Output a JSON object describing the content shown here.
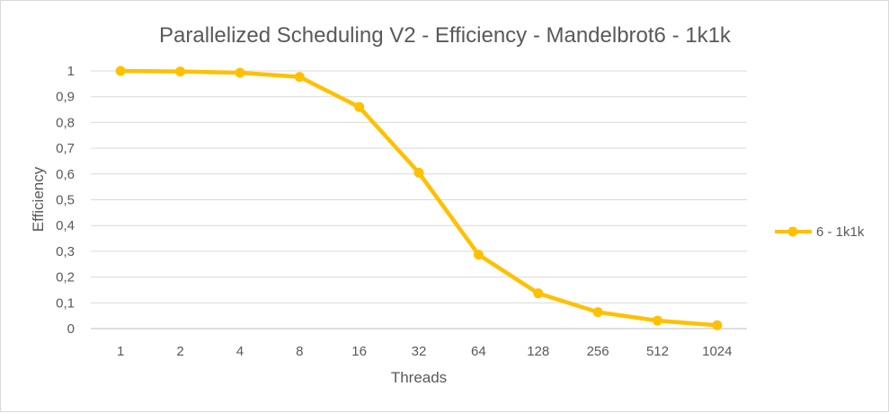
{
  "chart_data": {
    "type": "line",
    "title": "Parallelized Scheduling V2 - Efficiency - Mandelbrot6 - 1k1k",
    "xlabel": "Threads",
    "ylabel": "Efficiency",
    "categories": [
      "1",
      "2",
      "4",
      "8",
      "16",
      "32",
      "64",
      "128",
      "256",
      "512",
      "1024"
    ],
    "y_ticks": [
      "0",
      "0,1",
      "0,2",
      "0,3",
      "0,4",
      "0,5",
      "0,6",
      "0,7",
      "0,8",
      "0,9",
      "1"
    ],
    "ylim": [
      0,
      1
    ],
    "grid": true,
    "legend_position": "right",
    "series": [
      {
        "name": "6 - 1k1k",
        "color": "#FFC000",
        "values": [
          1.0,
          0.998,
          0.993,
          0.977,
          0.86,
          0.605,
          0.287,
          0.137,
          0.064,
          0.031,
          0.013
        ]
      }
    ]
  }
}
